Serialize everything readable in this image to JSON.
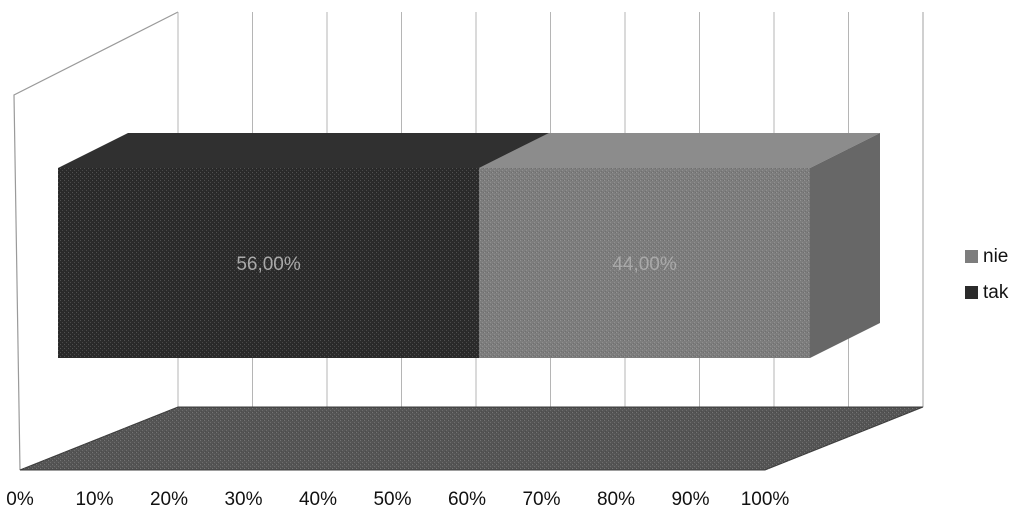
{
  "chart_data": {
    "type": "bar",
    "orientation": "horizontal",
    "stacked": true,
    "stack_mode": "percent",
    "three_d": true,
    "categories": [
      ""
    ],
    "series": [
      {
        "name": "tak",
        "values": [
          56.0
        ],
        "label": "56,00%",
        "color": "#2b2b2b"
      },
      {
        "name": "nie",
        "values": [
          44.0
        ],
        "label": "44,00%",
        "color": "#7d7d7d"
      }
    ],
    "x_ticks": [
      "0%",
      "10%",
      "20%",
      "30%",
      "40%",
      "50%",
      "60%",
      "70%",
      "80%",
      "90%",
      "100%"
    ],
    "xlim": [
      0,
      100
    ],
    "grid": true,
    "legend": {
      "position": "right",
      "order": [
        "nie",
        "tak"
      ]
    }
  }
}
